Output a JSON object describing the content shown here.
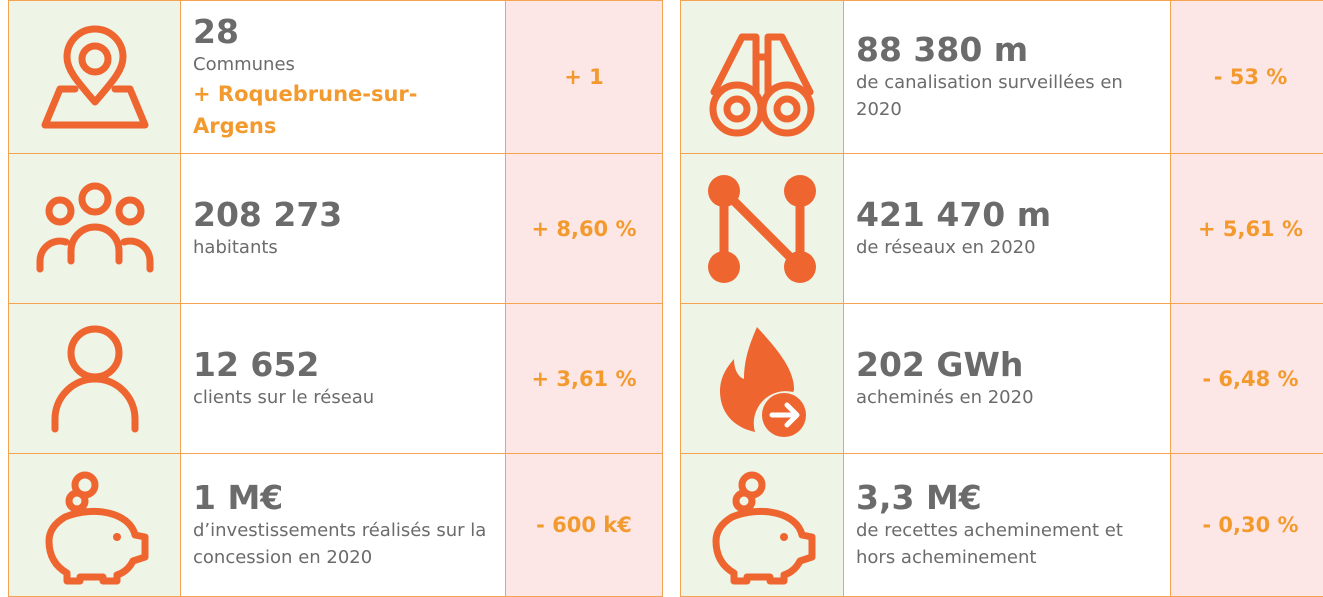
{
  "left": {
    "rows": [
      {
        "value": "28",
        "label": "Communes",
        "extra": "+ Roquebrune-sur-Argens",
        "change": "+ 1"
      },
      {
        "value": "208 273",
        "label": "habitants",
        "change": "+ 8,60 %"
      },
      {
        "value": "12 652",
        "label": "clients sur le réseau",
        "change": "+ 3,61 %"
      },
      {
        "value": "1 M€",
        "label": "d’investissements réalisés sur la concession en 2020",
        "change": "- 600 k€"
      }
    ]
  },
  "right": {
    "rows": [
      {
        "value": "88 380 m",
        "label": "de canalisation surveillées en 2020",
        "change": "- 53 %"
      },
      {
        "value": "421 470 m",
        "label": "de réseaux en 2020",
        "change": "+ 5,61 %"
      },
      {
        "value": "202 GWh",
        "label": "acheminés en 2020",
        "change": "- 6,48 %"
      },
      {
        "value": "3,3 M€",
        "label": "de recettes acheminement et hors acheminement",
        "change": "- 0,30 %"
      }
    ]
  }
}
